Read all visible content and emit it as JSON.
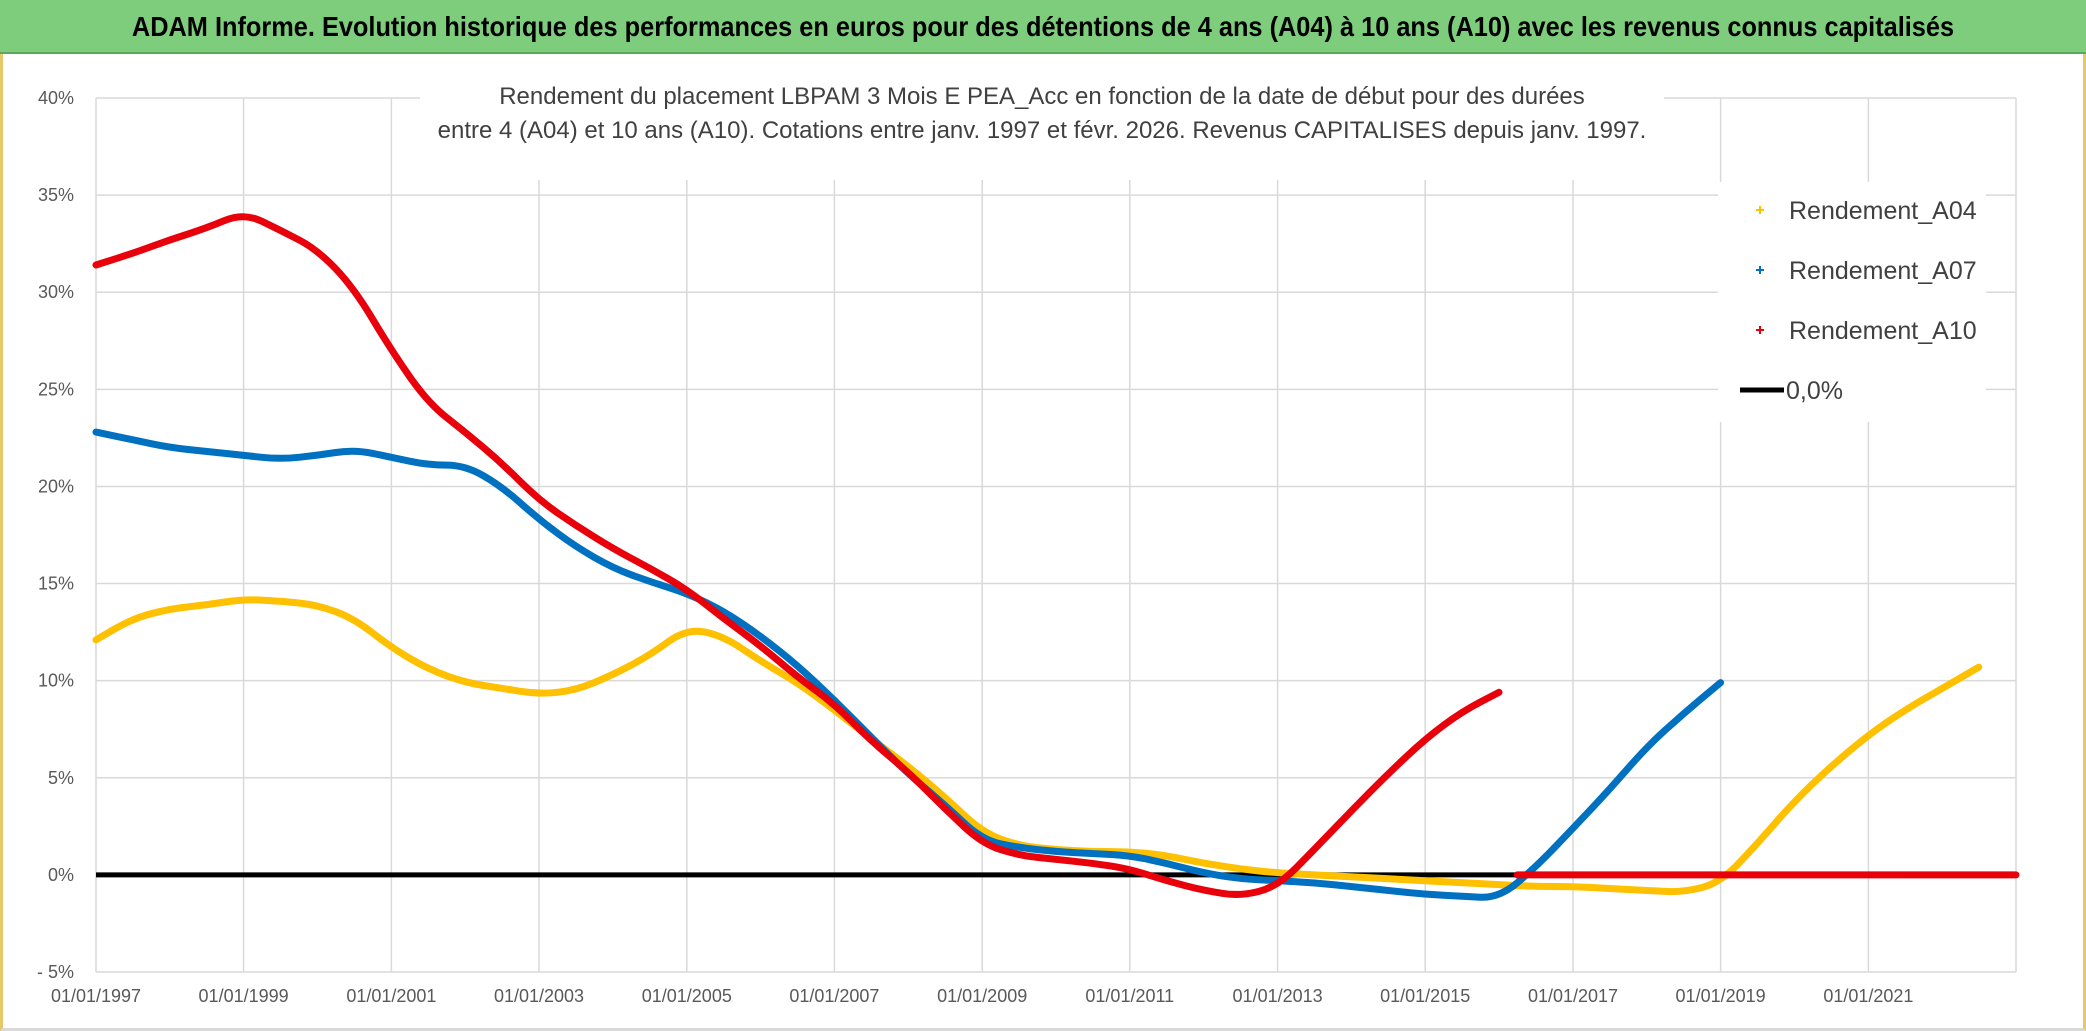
{
  "header": {
    "title": "ADAM Informe. Evolution historique des performances en euros pour des détentions de 4 ans (A04) à 10 ans (A10) avec les revenus connus capitalisés"
  },
  "chart_data": {
    "type": "scatter",
    "title": "",
    "subtitle_lines": [
      "Rendement du placement LBPAM 3 Mois E PEA_Acc en fonction de la date de début pour des durées",
      "entre 4 (A04) et 10 ans (A10). Cotations entre janv. 1997 et févr. 2026. Revenus CAPITALISES depuis janv. 1997."
    ],
    "xlabel": "",
    "ylabel": "",
    "x_tick_labels": [
      "01/01/1997",
      "01/01/1999",
      "01/01/2001",
      "01/01/2003",
      "01/01/2005",
      "01/01/2007",
      "01/01/2009",
      "01/01/2011",
      "01/01/2013",
      "01/01/2015",
      "01/01/2017",
      "01/01/2019",
      "01/01/2021"
    ],
    "y_tick_labels": [
      "- 5%",
      "0%",
      "5%",
      "10%",
      "15%",
      "20%",
      "25%",
      "30%",
      "35%",
      "40%"
    ],
    "xlim": [
      "01/01/1997",
      "01/01/2023"
    ],
    "ylim": [
      -5,
      40
    ],
    "grid": true,
    "legend_position": "top-right",
    "legend": [
      {
        "label": "Rendement_A04",
        "marker": "plus"
      },
      {
        "label": "Rendement_A07",
        "marker": "plus"
      },
      {
        "label": "Rendement_A10",
        "marker": "plus"
      },
      {
        "label": "0,0%",
        "marker": "line"
      }
    ],
    "colors": {
      "Rendement_A04": "#ffc000",
      "Rendement_A07": "#0070c0",
      "Rendement_A10": "#e8000b",
      "zero": "#000000",
      "grid": "#d9d9d9",
      "axis_text": "#595959"
    },
    "series": [
      {
        "name": "Rendement_A04",
        "x": [
          "01/01/1997",
          "01/07/1997",
          "01/01/1998",
          "01/07/1998",
          "01/01/1999",
          "01/07/1999",
          "01/01/2000",
          "01/07/2000",
          "01/01/2001",
          "01/07/2001",
          "01/01/2002",
          "01/07/2002",
          "01/01/2003",
          "01/07/2003",
          "01/01/2004",
          "01/07/2004",
          "01/01/2005",
          "01/07/2005",
          "01/01/2006",
          "01/07/2006",
          "01/01/2007",
          "01/07/2007",
          "01/01/2008",
          "01/07/2008",
          "01/01/2009",
          "01/07/2009",
          "01/01/2010",
          "01/07/2010",
          "01/01/2011",
          "01/07/2011",
          "01/01/2012",
          "01/07/2012",
          "01/01/2013",
          "01/07/2013",
          "01/01/2014",
          "01/07/2014",
          "01/01/2015",
          "01/07/2015",
          "01/01/2016",
          "01/07/2016",
          "01/01/2017",
          "01/07/2017",
          "01/01/2018",
          "01/07/2018",
          "01/01/2019",
          "01/07/2019",
          "01/01/2020",
          "01/07/2020",
          "01/01/2021",
          "01/07/2021",
          "01/01/2022",
          "01/07/2022"
        ],
        "y": [
          12.1,
          13.2,
          13.7,
          13.9,
          14.2,
          14.1,
          13.9,
          13.2,
          11.7,
          10.6,
          9.9,
          9.6,
          9.3,
          9.5,
          10.3,
          11.3,
          12.7,
          12.3,
          11.0,
          9.9,
          8.5,
          7.0,
          5.6,
          4.0,
          2.2,
          1.5,
          1.3,
          1.2,
          1.2,
          1.0,
          0.6,
          0.3,
          0.1,
          0.0,
          -0.1,
          -0.2,
          -0.3,
          -0.4,
          -0.5,
          -0.6,
          -0.6,
          -0.7,
          -0.8,
          -0.9,
          -0.4,
          1.6,
          3.8,
          5.6,
          7.2,
          8.5,
          9.6,
          10.7
        ]
      },
      {
        "name": "Rendement_A07",
        "x": [
          "01/01/1997",
          "01/07/1997",
          "01/01/1998",
          "01/07/1998",
          "01/01/1999",
          "01/07/1999",
          "01/01/2000",
          "01/07/2000",
          "01/01/2001",
          "01/07/2001",
          "01/01/2002",
          "01/07/2002",
          "01/01/2003",
          "01/07/2003",
          "01/01/2004",
          "01/07/2004",
          "01/01/2005",
          "01/07/2005",
          "01/01/2006",
          "01/07/2006",
          "01/01/2007",
          "01/07/2007",
          "01/01/2008",
          "01/07/2008",
          "01/01/2009",
          "01/07/2009",
          "01/01/2010",
          "01/07/2010",
          "01/01/2011",
          "01/07/2011",
          "01/01/2012",
          "01/07/2012",
          "01/01/2013",
          "01/07/2013",
          "01/01/2014",
          "01/07/2014",
          "01/01/2015",
          "01/07/2015",
          "01/01/2016",
          "01/07/2016",
          "01/01/2017",
          "01/07/2017",
          "01/01/2018",
          "01/07/2018",
          "01/01/2019"
        ],
        "y": [
          22.8,
          22.4,
          22.0,
          21.8,
          21.6,
          21.4,
          21.6,
          21.9,
          21.5,
          21.1,
          21.1,
          20.0,
          18.3,
          16.9,
          15.8,
          15.1,
          14.5,
          13.6,
          12.3,
          10.8,
          9.0,
          7.1,
          5.2,
          3.6,
          1.8,
          1.4,
          1.2,
          1.1,
          1.0,
          0.6,
          0.1,
          -0.2,
          -0.3,
          -0.4,
          -0.6,
          -0.8,
          -1.0,
          -1.1,
          -1.2,
          0.4,
          2.4,
          4.4,
          6.6,
          8.3,
          9.9
        ]
      },
      {
        "name": "Rendement_A10",
        "x": [
          "01/01/1997",
          "01/07/1997",
          "01/01/1998",
          "01/07/1998",
          "01/01/1999",
          "01/07/1999",
          "01/01/2000",
          "01/07/2000",
          "01/01/2001",
          "01/07/2001",
          "01/01/2002",
          "01/07/2002",
          "01/01/2003",
          "01/07/2003",
          "01/01/2004",
          "01/07/2004",
          "01/01/2005",
          "01/07/2005",
          "01/01/2006",
          "01/07/2006",
          "01/01/2007",
          "01/07/2007",
          "01/01/2008",
          "01/07/2008",
          "01/01/2009",
          "01/07/2009",
          "01/01/2010",
          "01/07/2010",
          "01/01/2011",
          "01/07/2011",
          "01/01/2012",
          "01/07/2012",
          "01/01/2013",
          "01/07/2013",
          "01/01/2014",
          "01/07/2014",
          "01/01/2015",
          "01/07/2015",
          "01/01/2016"
        ],
        "y": [
          31.4,
          32.0,
          32.7,
          33.3,
          34.1,
          33.2,
          32.2,
          30.2,
          27.0,
          24.3,
          22.8,
          21.2,
          19.3,
          18.0,
          16.8,
          15.8,
          14.7,
          13.2,
          11.8,
          10.2,
          8.8,
          6.9,
          5.3,
          3.4,
          1.6,
          1.0,
          0.8,
          0.6,
          0.3,
          -0.3,
          -0.8,
          -1.1,
          -0.6,
          1.3,
          3.3,
          5.2,
          7.0,
          8.4,
          9.4
        ]
      },
      {
        "name": "Rendement_A10_zero",
        "x": [
          "01/04/2016",
          "01/01/2023"
        ],
        "y": [
          0,
          0
        ]
      }
    ]
  }
}
